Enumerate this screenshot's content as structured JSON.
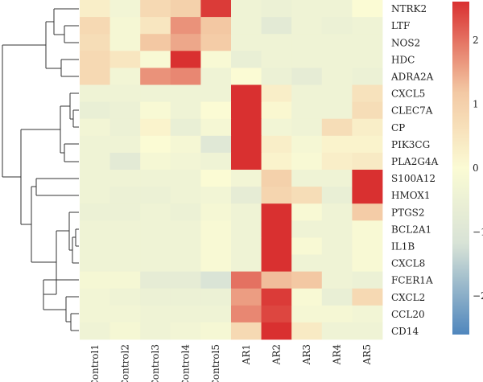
{
  "chart_data": {
    "type": "heatmap",
    "title": "",
    "xlabel": "",
    "ylabel": "",
    "columns": [
      "Control1",
      "Control2",
      "Control3",
      "Control4",
      "Control5",
      "AR1",
      "AR2",
      "AR3",
      "AR4",
      "AR5"
    ],
    "rows": [
      "NTRK2",
      "LTF",
      "NOS2",
      "HDC",
      "ADRA2A",
      "CXCL5",
      "CLEC7A",
      "CP",
      "PIK3CG",
      "PLA2G4A",
      "S100A12",
      "HMOX1",
      "PTGS2",
      "BCL2A1",
      "IL1B",
      "CXCL8",
      "FCER1A",
      "CXCL2",
      "CCL20",
      "CD14"
    ],
    "values": [
      [
        0.3,
        -0.3,
        0.8,
        1.0,
        2.5,
        -0.4,
        -0.5,
        -0.4,
        -0.4,
        0.0
      ],
      [
        0.8,
        -0.2,
        0.5,
        1.7,
        1.2,
        -0.4,
        -0.8,
        -0.4,
        -0.5,
        -0.4
      ],
      [
        0.7,
        -0.2,
        1.2,
        1.5,
        1.1,
        -0.4,
        -0.4,
        -0.4,
        -0.4,
        -0.4
      ],
      [
        0.8,
        0.5,
        -0.1,
        2.9,
        -0.1,
        -0.6,
        -0.4,
        -0.4,
        -0.4,
        -0.4
      ],
      [
        0.8,
        -0.3,
        1.7,
        1.8,
        -0.4,
        0.0,
        -0.5,
        -0.7,
        -0.4,
        -0.5
      ],
      [
        -0.4,
        -0.4,
        -0.4,
        -0.4,
        -0.4,
        3.1,
        0.3,
        -0.4,
        -0.4,
        0.6
      ],
      [
        -0.6,
        -0.5,
        -0.1,
        -0.4,
        0.0,
        3.0,
        0.1,
        -0.4,
        -0.4,
        0.7
      ],
      [
        -0.3,
        -0.5,
        0.2,
        -0.6,
        -0.2,
        3.0,
        -0.3,
        -0.4,
        0.7,
        0.3
      ],
      [
        -0.4,
        -0.4,
        0.0,
        -0.2,
        -0.9,
        3.0,
        0.3,
        -0.2,
        0.2,
        0.2
      ],
      [
        -0.4,
        -0.8,
        -0.2,
        -0.3,
        -0.4,
        3.0,
        0.2,
        -0.1,
        0.3,
        0.4
      ],
      [
        -0.4,
        -0.4,
        -0.4,
        -0.4,
        0.0,
        -0.3,
        1.0,
        -0.4,
        -0.4,
        3.1
      ],
      [
        -0.4,
        -0.5,
        -0.5,
        -0.4,
        -0.3,
        -0.7,
        0.9,
        0.7,
        -0.6,
        3.1
      ],
      [
        -0.5,
        -0.5,
        -0.4,
        -0.5,
        -0.2,
        -0.4,
        3.3,
        -0.1,
        -0.4,
        1.1
      ],
      [
        -0.4,
        -0.4,
        -0.4,
        -0.4,
        -0.1,
        -0.4,
        3.3,
        -0.4,
        -0.4,
        -0.1
      ],
      [
        -0.4,
        -0.4,
        -0.4,
        -0.4,
        -0.1,
        -0.4,
        3.3,
        -0.1,
        -0.4,
        -0.1
      ],
      [
        -0.4,
        -0.4,
        -0.4,
        -0.4,
        -0.1,
        -0.4,
        3.3,
        -0.4,
        -0.4,
        -0.1
      ],
      [
        -0.2,
        -0.2,
        -0.7,
        -0.7,
        -1.1,
        2.0,
        1.3,
        1.2,
        -0.4,
        -0.5
      ],
      [
        -0.3,
        -0.4,
        -0.5,
        -0.5,
        -0.5,
        1.6,
        2.5,
        -0.1,
        -0.6,
        0.8
      ],
      [
        -0.3,
        -0.3,
        -0.4,
        -0.4,
        -0.4,
        1.8,
        2.4,
        -0.2,
        -0.2,
        -0.3
      ],
      [
        -0.4,
        -0.2,
        -0.4,
        -0.3,
        -0.2,
        0.8,
        3.1,
        0.4,
        -0.4,
        -0.4
      ]
    ],
    "colorbar": {
      "range": [
        -2.6,
        2.6
      ],
      "ticks": [
        2,
        1,
        0,
        -1,
        -2
      ],
      "tick_labels": [
        "2",
        "1",
        "0",
        "−1",
        "−2"
      ],
      "colors": {
        "low": "#4f86bd",
        "mid": "#fbfbd4",
        "high": "#d93030",
        "low_mid": "#d7e2d6",
        "high_mid": "#f3c8a3"
      }
    },
    "legend": "right",
    "grid": false,
    "row_dendrogram": true,
    "row_dendrogram_position": "left"
  }
}
